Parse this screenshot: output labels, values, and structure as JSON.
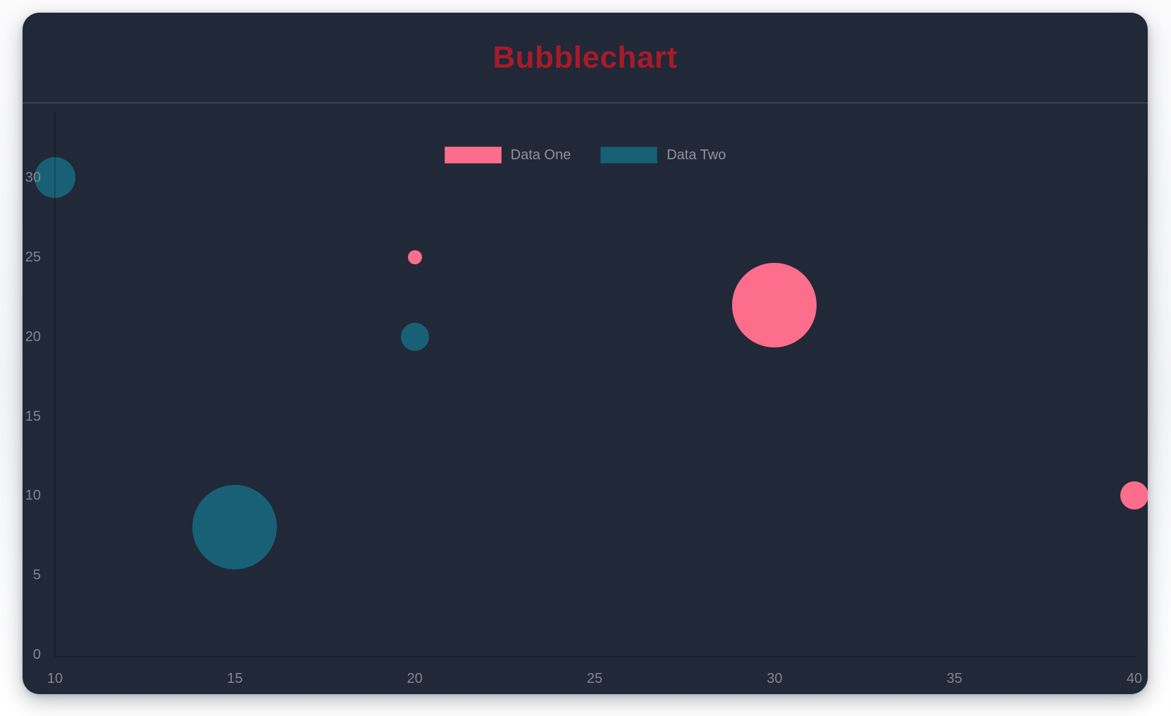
{
  "window": {
    "page_background": "#f6f7f9",
    "card_background": "#212837",
    "divider_color": "#3a4156"
  },
  "chart_data": {
    "type": "scatter",
    "variant": "bubble",
    "title": "Bubblechart",
    "title_color": "#a61b29",
    "xlabel": "",
    "ylabel": "",
    "xlim": [
      10,
      40
    ],
    "ylim": [
      0,
      30
    ],
    "x_ticks": [
      "10",
      "15",
      "20",
      "25",
      "30",
      "35",
      "40"
    ],
    "y_ticks": [
      "0",
      "5",
      "10",
      "15",
      "20",
      "25",
      "30"
    ],
    "grid": false,
    "legend_position": "top-center",
    "axis_line_color": "rgba(0,0,0,0.22)",
    "tick_text_color": "#82868e",
    "legend_text_color": "#8f939a",
    "series": [
      {
        "name": "Data One",
        "color": "#fc6e8c",
        "points": [
          {
            "x": 20,
            "y": 25,
            "r": 10
          },
          {
            "x": 30,
            "y": 22,
            "r": 60
          },
          {
            "x": 40,
            "y": 10,
            "r": 20
          }
        ]
      },
      {
        "name": "Data Two",
        "color": "#186076",
        "points": [
          {
            "x": 10,
            "y": 30,
            "r": 29
          },
          {
            "x": 20,
            "y": 20,
            "r": 20
          },
          {
            "x": 15,
            "y": 8,
            "r": 60
          }
        ]
      }
    ]
  }
}
